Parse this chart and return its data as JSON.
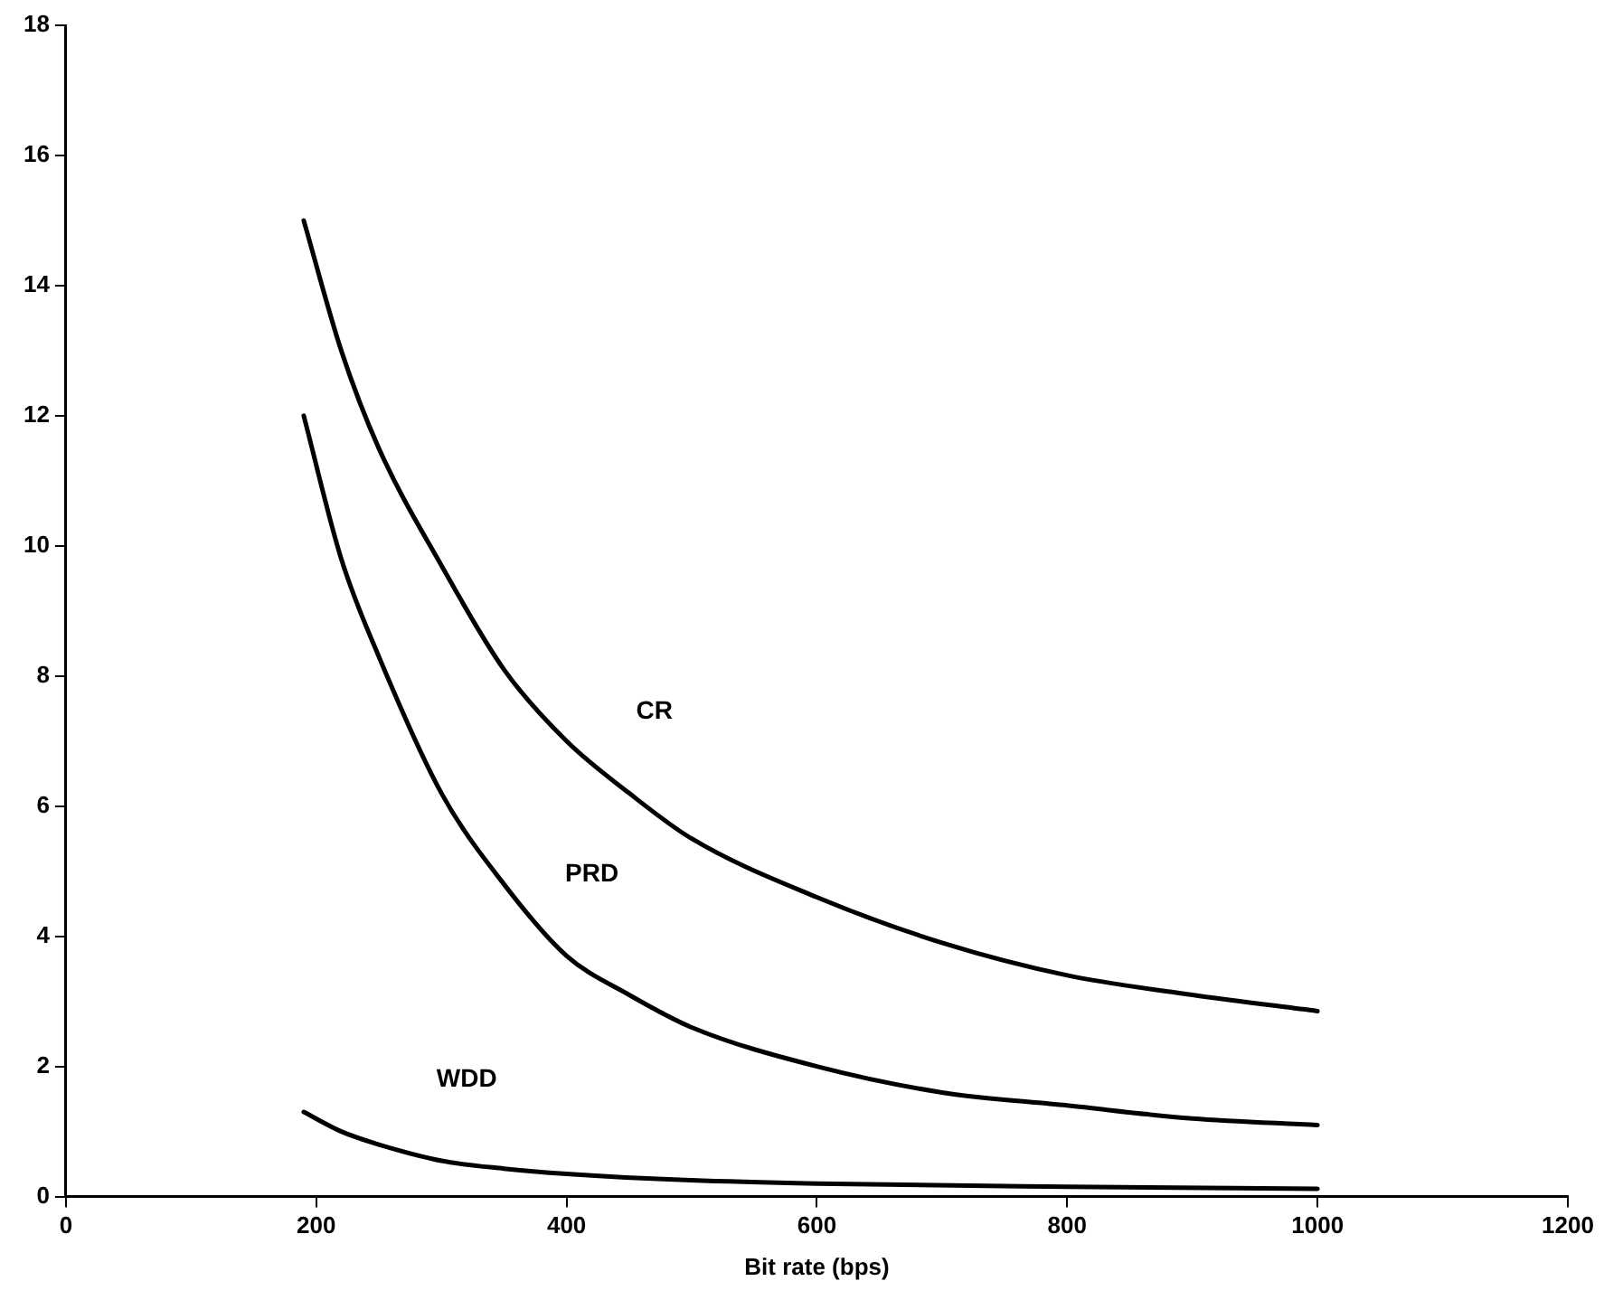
{
  "chart_data": {
    "type": "line",
    "xlabel": "Bit rate (bps)",
    "xlim": [
      0,
      1200
    ],
    "xticks": [
      0,
      200,
      400,
      600,
      800,
      1000,
      1200
    ],
    "ylim": [
      0,
      18
    ],
    "yticks": [
      0,
      2,
      4,
      6,
      8,
      10,
      12,
      14,
      16,
      18
    ],
    "grid": false,
    "legend": false,
    "marker": "none",
    "line_style": "solid",
    "series": [
      {
        "name": "CR",
        "color": "#000000",
        "x": [
          190,
          220,
          250,
          300,
          350,
          400,
          450,
          500,
          600,
          700,
          800,
          900,
          1000
        ],
        "values": [
          15,
          13,
          11.5,
          9.7,
          8.1,
          7,
          6.2,
          5.5,
          4.6,
          3.9,
          3.4,
          3.1,
          2.85
        ]
      },
      {
        "name": "PRD",
        "color": "#000000",
        "x": [
          190,
          220,
          250,
          300,
          350,
          400,
          450,
          500,
          600,
          700,
          800,
          900,
          1000
        ],
        "values": [
          12,
          9.8,
          8.3,
          6.2,
          4.8,
          3.7,
          3.1,
          2.6,
          2,
          1.6,
          1.4,
          1.2,
          1.1
        ]
      },
      {
        "name": "WDD",
        "color": "#000000",
        "x": [
          190,
          220,
          250,
          300,
          350,
          400,
          500,
          600,
          800,
          1000
        ],
        "values": [
          1.3,
          1,
          0.8,
          0.55,
          0.43,
          0.35,
          0.25,
          0.2,
          0.15,
          0.12
        ]
      }
    ]
  }
}
